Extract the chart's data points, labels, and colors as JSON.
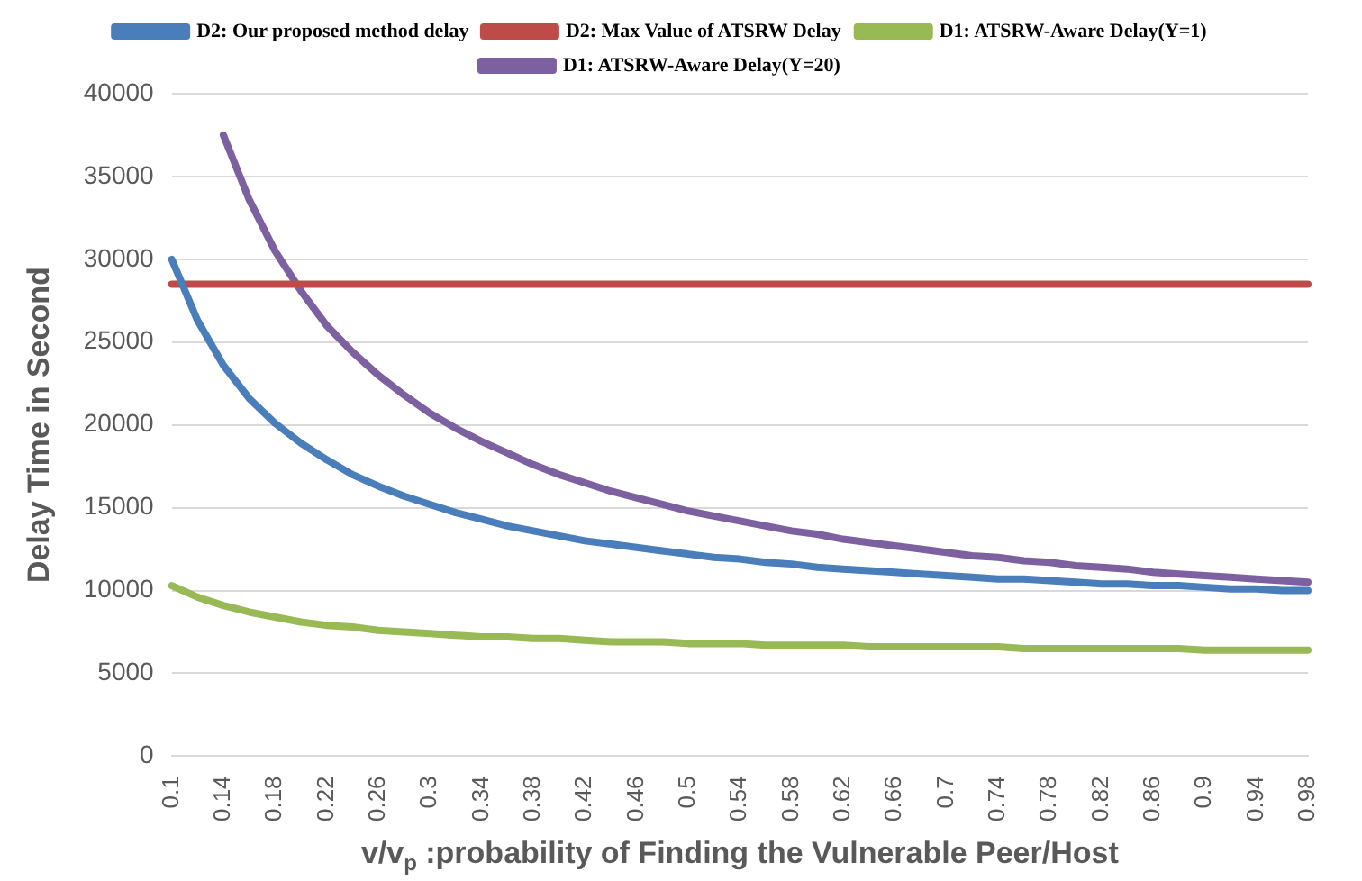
{
  "chart_data": {
    "type": "line",
    "xlabel": "v/v$_{p}$ :probability of Finding the Vulnerable Peer/Host",
    "ylabel": "Delay Time in Second",
    "categories": [
      "0.1",
      null,
      "0.14",
      null,
      "0.18",
      null,
      "0.22",
      null,
      "0.26",
      null,
      "0.3",
      null,
      "0.34",
      null,
      "0.38",
      null,
      "0.42",
      null,
      "0.46",
      null,
      "0.5",
      null,
      "0.54",
      null,
      "0.58",
      null,
      "0.62",
      null,
      "0.66",
      null,
      "0.7",
      null,
      "0.74",
      null,
      "0.78",
      null,
      "0.82",
      null,
      "0.86",
      null,
      "0.9",
      null,
      "0.94",
      null,
      "0.98"
    ],
    "series": [
      {
        "name": "D2: Our proposed method delay",
        "color": "#4a7ebb",
        "values": [
          30000,
          26300,
          23600,
          21600,
          20100,
          18900,
          17900,
          17000,
          16300,
          15700,
          15200,
          14700,
          14300,
          13900,
          13600,
          13300,
          13000,
          12800,
          12600,
          12400,
          12200,
          12000,
          11900,
          11700,
          11600,
          11400,
          11300,
          11200,
          11100,
          11000,
          10900,
          10800,
          10700,
          10700,
          10600,
          10500,
          10400,
          10400,
          10300,
          10300,
          10200,
          10100,
          10100,
          10000,
          10000
        ]
      },
      {
        "name": "D2: Max Value of ATSRW Delay",
        "color": "#be4b48",
        "values": [
          28500,
          28500,
          28500,
          28500,
          28500,
          28500,
          28500,
          28500,
          28500,
          28500,
          28500,
          28500,
          28500,
          28500,
          28500,
          28500,
          28500,
          28500,
          28500,
          28500,
          28500,
          28500,
          28500,
          28500,
          28500,
          28500,
          28500,
          28500,
          28500,
          28500,
          28500,
          28500,
          28500,
          28500,
          28500,
          28500,
          28500,
          28500,
          28500,
          28500,
          28500,
          28500,
          28500,
          28500,
          28500
        ]
      },
      {
        "name": "D1: ATSRW-Aware Delay(Y=1)",
        "color": "#98b954",
        "values": [
          10300,
          9600,
          9100,
          8700,
          8400,
          8100,
          7900,
          7800,
          7600,
          7500,
          7400,
          7300,
          7200,
          7200,
          7100,
          7100,
          7000,
          6900,
          6900,
          6900,
          6800,
          6800,
          6800,
          6700,
          6700,
          6700,
          6700,
          6600,
          6600,
          6600,
          6600,
          6600,
          6600,
          6500,
          6500,
          6500,
          6500,
          6500,
          6500,
          6500,
          6400,
          6400,
          6400,
          6400,
          6400
        ]
      },
      {
        "name": "D1: ATSRW-Aware Delay(Y=20)",
        "color": "#7d60a0",
        "values": [
          null,
          null,
          37500,
          33600,
          30500,
          28100,
          26000,
          24400,
          23000,
          21800,
          20700,
          19800,
          19000,
          18300,
          17600,
          17000,
          16500,
          16000,
          15600,
          15200,
          14800,
          14500,
          14200,
          13900,
          13600,
          13400,
          13100,
          12900,
          12700,
          12500,
          12300,
          12100,
          12000,
          11800,
          11700,
          11500,
          11400,
          11300,
          11100,
          11000,
          10900,
          10800,
          10700,
          10600,
          10500
        ]
      }
    ],
    "ylim": [
      0,
      40000
    ],
    "yticks": [
      0,
      5000,
      10000,
      15000,
      20000,
      25000,
      30000,
      35000,
      40000
    ],
    "grid": "y",
    "legend": "top",
    "marker": "none",
    "line_style": "solid"
  }
}
